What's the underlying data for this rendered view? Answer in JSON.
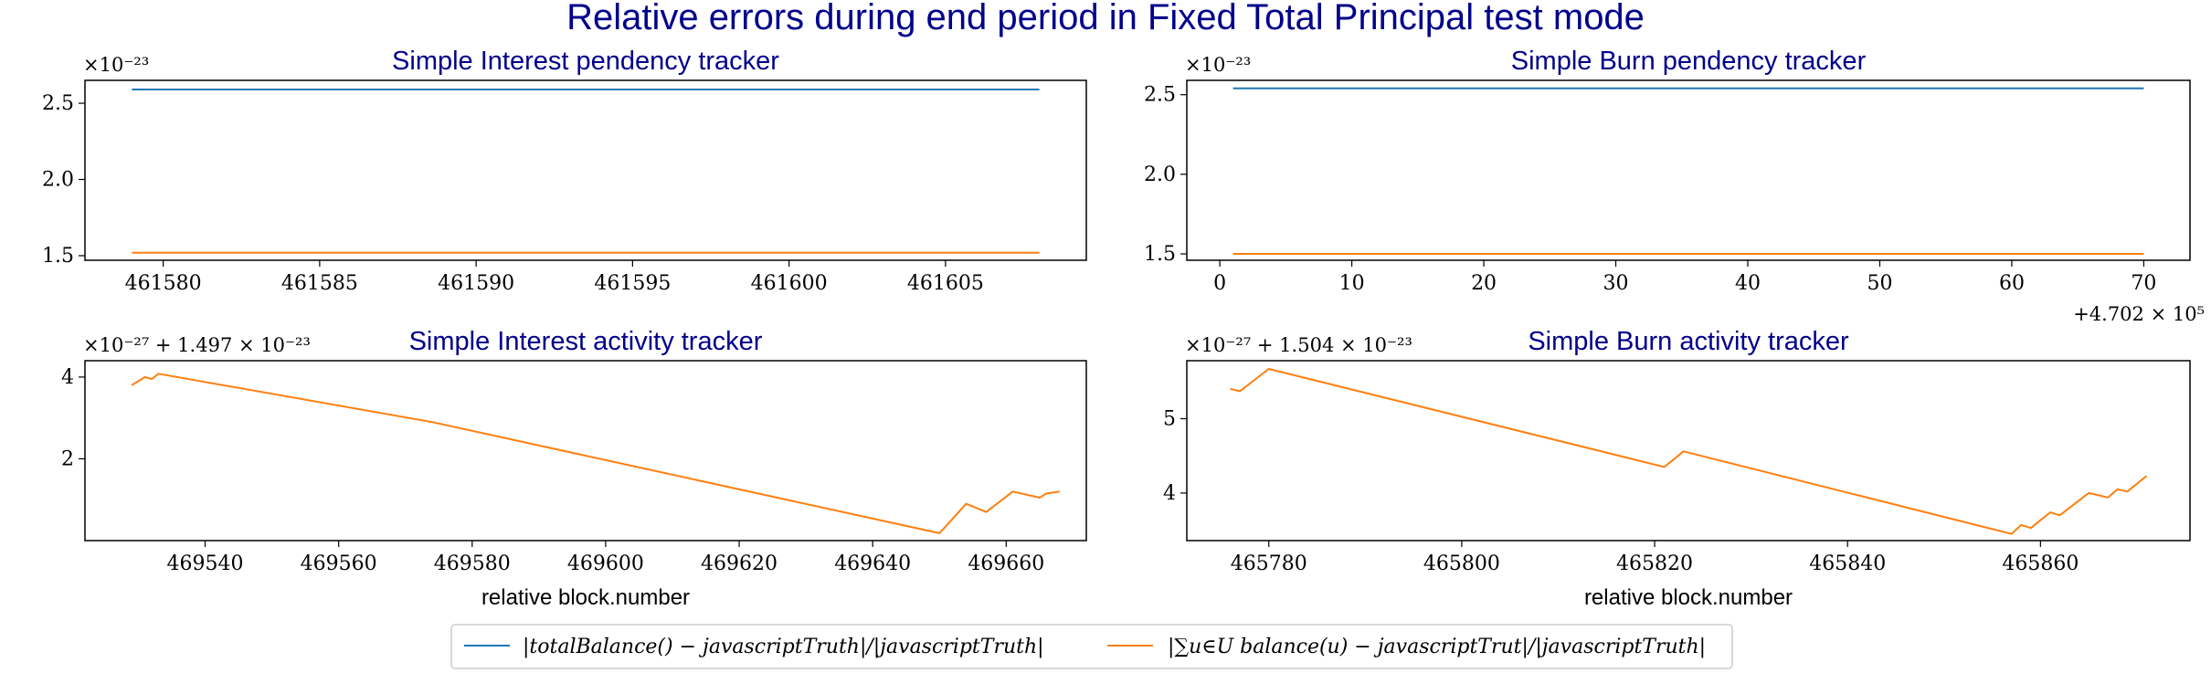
{
  "suptitle": "Relative errors during end period in Fixed Total Principal test mode",
  "series_names": [
    "|totalBalance() − javascriptTruth|/|javascriptTruth|",
    "|∑u∈U balance(u) − javascriptTrut|/|javascriptTruth|"
  ],
  "colors": {
    "series_0": "#1f77b4",
    "series_1": "#ff7f0e",
    "title": "#00008b"
  },
  "chart_data": [
    {
      "type": "line",
      "title": "Simple Interest pendency tracker",
      "xlabel": "",
      "y_offset_text": "×10⁻²³",
      "x_offset_text": "",
      "xlim": [
        461577.5,
        461609.5
      ],
      "ylim": [
        1.47,
        2.65
      ],
      "xticks": [
        461580,
        461585,
        461590,
        461595,
        461600,
        461605
      ],
      "xtick_labels": [
        "461580",
        "461585",
        "461590",
        "461595",
        "461600",
        "461605"
      ],
      "yticks": [
        1.5,
        2.0,
        2.5
      ],
      "ytick_labels": [
        "1.5",
        "2.0",
        "2.5"
      ],
      "series": [
        {
          "values_x": [
            461579,
            461608
          ],
          "values_y": [
            2.59,
            2.59
          ]
        },
        {
          "values_x": [
            461579,
            461608
          ],
          "values_y": [
            1.52,
            1.52
          ]
        }
      ]
    },
    {
      "type": "line",
      "title": "Simple Burn pendency tracker",
      "xlabel": "",
      "y_offset_text": "×10⁻²³",
      "x_offset_text": "+4.702 × 10⁵",
      "xlim": [
        -2.5,
        73.5
      ],
      "ylim": [
        1.46,
        2.59
      ],
      "xticks": [
        0,
        10,
        20,
        30,
        40,
        50,
        60,
        70
      ],
      "xtick_labels": [
        "0",
        "10",
        "20",
        "30",
        "40",
        "50",
        "60",
        "70"
      ],
      "yticks": [
        1.5,
        2.0,
        2.5
      ],
      "ytick_labels": [
        "1.5",
        "2.0",
        "2.5"
      ],
      "series": [
        {
          "values_x": [
            1,
            70
          ],
          "values_y": [
            2.54,
            2.54
          ]
        },
        {
          "values_x": [
            1,
            70
          ],
          "values_y": [
            1.5,
            1.5
          ]
        }
      ]
    },
    {
      "type": "line",
      "title": "Simple Interest activity tracker",
      "xlabel": "relative block.number",
      "y_offset_text": "×10⁻²⁷ + 1.497 × 10⁻²³",
      "x_offset_text": "",
      "xlim": [
        469522,
        469672
      ],
      "ylim": [
        0.0,
        4.4
      ],
      "xticks": [
        469540,
        469560,
        469580,
        469600,
        469620,
        469640,
        469660
      ],
      "xtick_labels": [
        "469540",
        "469560",
        "469580",
        "469600",
        "469620",
        "469640",
        "469660"
      ],
      "yticks": [
        2,
        4
      ],
      "ytick_labels": [
        "2",
        "4"
      ],
      "series": [
        {
          "values_x": [
            469529,
            469531,
            469532,
            469533,
            469574,
            469650,
            469654,
            469657,
            469661,
            469665,
            469666,
            469668
          ],
          "values_y": [
            3.8,
            4.0,
            3.95,
            4.08,
            2.9,
            0.18,
            0.9,
            0.7,
            1.2,
            1.05,
            1.15,
            1.2
          ]
        }
      ]
    },
    {
      "type": "line",
      "title": "Simple Burn activity tracker",
      "xlabel": "relative block.number",
      "y_offset_text": "×10⁻²⁷ + 1.504 × 10⁻²³",
      "x_offset_text": "",
      "xlim": [
        465771.5,
        465875.5
      ],
      "ylim": [
        3.36,
        5.78
      ],
      "xticks": [
        465780,
        465800,
        465820,
        465840,
        465860
      ],
      "xtick_labels": [
        "465780",
        "465800",
        "465820",
        "465840",
        "465860"
      ],
      "yticks": [
        4,
        5
      ],
      "ytick_labels": [
        "4",
        "5"
      ],
      "series": [
        {
          "values_x": [
            465776,
            465777,
            465780,
            465821,
            465823,
            465857,
            465858,
            465859,
            465861,
            465862,
            465865,
            465867,
            465868,
            465869,
            465871
          ],
          "values_y": [
            5.4,
            5.37,
            5.67,
            4.35,
            4.56,
            3.45,
            3.57,
            3.53,
            3.74,
            3.7,
            4.0,
            3.94,
            4.05,
            4.02,
            4.23
          ]
        }
      ]
    }
  ]
}
